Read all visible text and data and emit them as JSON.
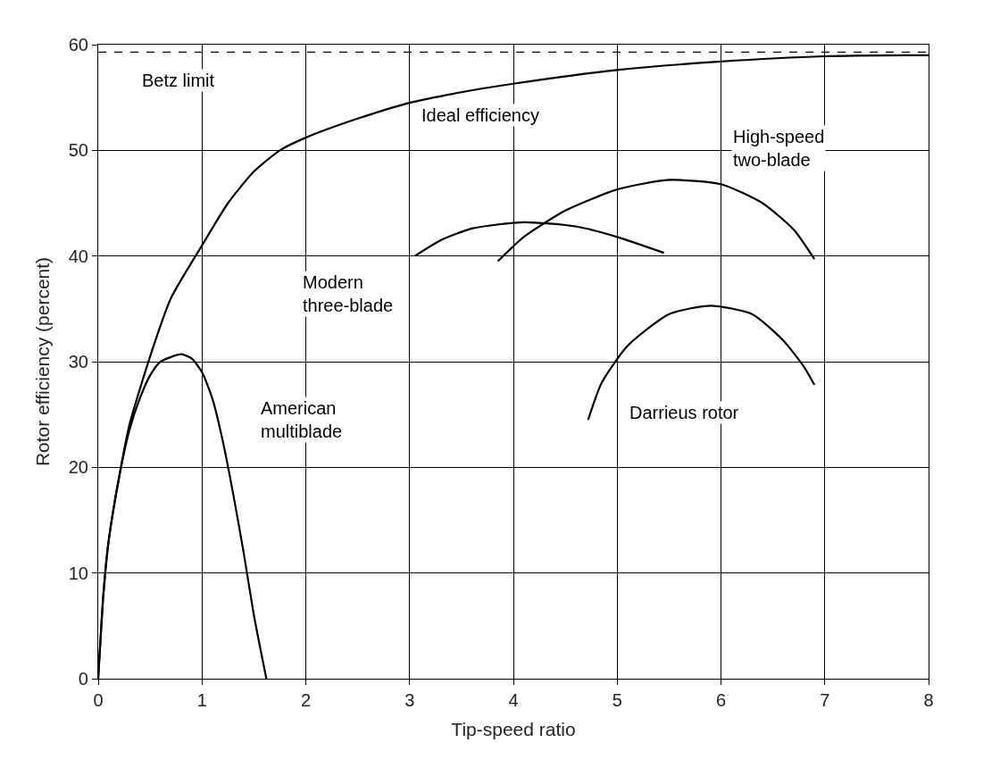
{
  "chart_data": {
    "type": "line",
    "xlabel": "Tip-speed ratio",
    "ylabel": "Rotor efficiency (percent)",
    "xlim": [
      0,
      8
    ],
    "xticks": [
      0,
      1,
      2,
      3,
      4,
      5,
      6,
      7,
      8
    ],
    "ylim": [
      0,
      60
    ],
    "yticks": [
      0,
      10,
      20,
      30,
      40,
      50,
      60
    ],
    "grid": true,
    "legend": false,
    "marker": "none",
    "line_style": "solid",
    "series": [
      {
        "name": "Ideal efficiency",
        "color": "#000000",
        "x": [
          0,
          0.05,
          0.1,
          0.2,
          0.3,
          0.5,
          0.7,
          1,
          1.25,
          1.5,
          1.75,
          2,
          2.5,
          3,
          3.5,
          4,
          5,
          6,
          7,
          8
        ],
        "values": [
          0,
          8,
          13,
          19,
          24,
          30.5,
          36,
          41,
          45,
          48,
          50,
          51.2,
          53,
          54.5,
          55.5,
          56.3,
          57.6,
          58.4,
          58.9,
          59
        ]
      },
      {
        "name": "American multiblade",
        "color": "#000000",
        "x": [
          0,
          0.05,
          0.1,
          0.2,
          0.3,
          0.4,
          0.5,
          0.6,
          0.8,
          0.9,
          1.0,
          1.1,
          1.2,
          1.3,
          1.4,
          1.5,
          1.62
        ],
        "values": [
          0,
          8,
          13,
          19,
          23.5,
          26.5,
          28.7,
          30,
          30.7,
          30.3,
          29,
          26.5,
          22.5,
          17.5,
          12,
          6,
          0
        ]
      },
      {
        "name": "Modern three-blade",
        "color": "#000000",
        "x": [
          3.05,
          3.3,
          3.6,
          4.1,
          4.6,
          5.0,
          5.45
        ],
        "values": [
          40,
          41.5,
          42.6,
          43.2,
          42.8,
          41.8,
          40.3
        ]
      },
      {
        "name": "High-speed two-blade",
        "color": "#000000",
        "x": [
          3.85,
          4.1,
          4.5,
          5,
          5.5,
          6,
          6.4,
          6.7,
          6.9
        ],
        "values": [
          39.5,
          41.8,
          44.3,
          46.3,
          47.2,
          46.8,
          45,
          42.5,
          39.7
        ]
      },
      {
        "name": "Darrieus rotor",
        "color": "#000000",
        "x": [
          4.72,
          4.85,
          5.1,
          5.5,
          5.9,
          6.3,
          6.6,
          6.8,
          6.9
        ],
        "values": [
          24.5,
          28,
          31.5,
          34.5,
          35.3,
          34.5,
          32,
          29.5,
          27.8
        ]
      }
    ],
    "ref_lines": [
      {
        "axis": "y",
        "value": 59.3,
        "label": "Betz limit",
        "color": "#000000",
        "line_style": "dashed"
      }
    ]
  }
}
